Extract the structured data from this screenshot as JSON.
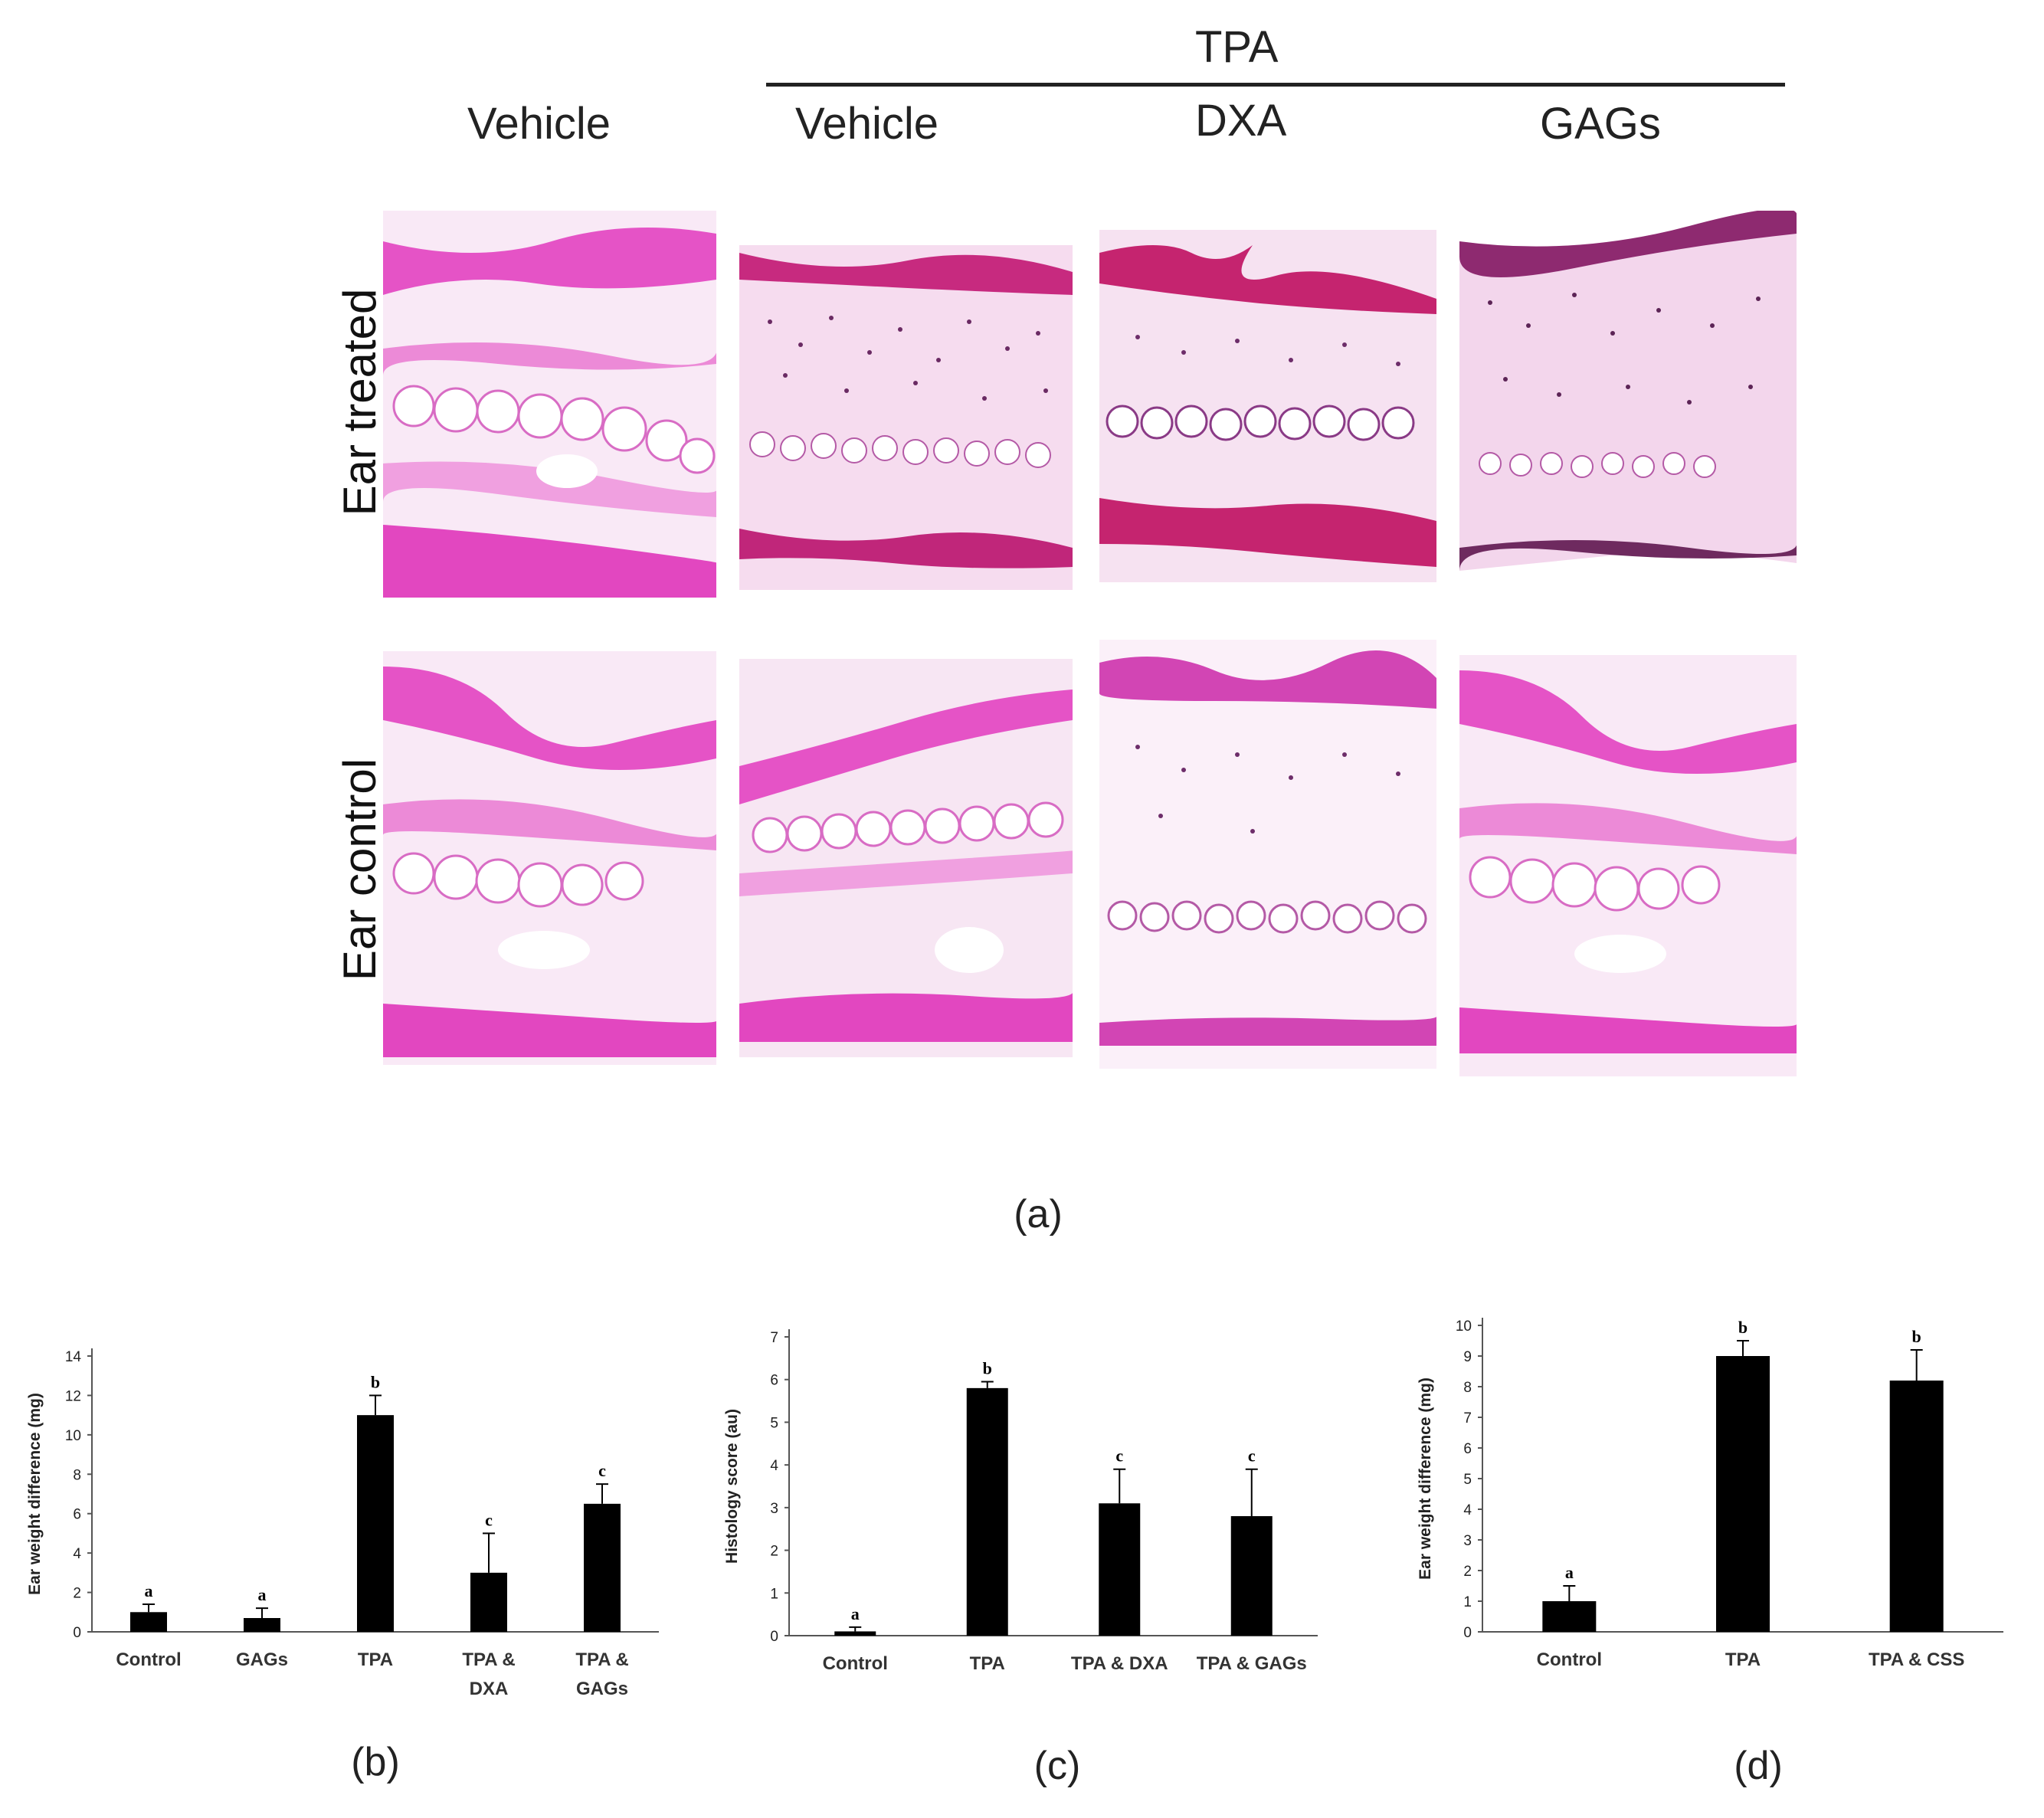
{
  "panel_a": {
    "header_tpa": "TPA",
    "col_headers": [
      "Vehicle",
      "Vehicle",
      "DXA",
      "GAGs"
    ],
    "row_labels": [
      "Ear treated",
      "Ear control"
    ],
    "label": "(a)"
  },
  "panel_labels": {
    "b": "(b)",
    "c": "(c)",
    "d": "(d)"
  },
  "chart_data": [
    {
      "type": "bar",
      "categories": [
        [
          "Control"
        ],
        [
          "GAGs"
        ],
        [
          "TPA"
        ],
        [
          "TPA &",
          "DXA"
        ],
        [
          "TPA &",
          "GAGs"
        ]
      ],
      "values": [
        1.0,
        0.7,
        11.0,
        3.0,
        6.5
      ],
      "errors": [
        0.4,
        0.5,
        1.0,
        2.0,
        1.0
      ],
      "letters": [
        "a",
        "a",
        "b",
        "c",
        "c"
      ],
      "ylabel": "Ear weight difference  (mg)",
      "ylim": [
        0,
        14
      ],
      "yticks": [
        0,
        2,
        4,
        6,
        8,
        10,
        12,
        14
      ],
      "color": "#000000"
    },
    {
      "type": "bar",
      "categories": [
        [
          "Control"
        ],
        [
          "TPA"
        ],
        [
          "TPA & DXA"
        ],
        [
          "TPA & GAGs"
        ]
      ],
      "values": [
        0.1,
        5.8,
        3.1,
        2.8
      ],
      "errors": [
        0.1,
        0.15,
        0.8,
        1.1
      ],
      "letters": [
        "a",
        "b",
        "c",
        "c"
      ],
      "ylabel": "Histology score (au)",
      "ylim": [
        0,
        7
      ],
      "yticks": [
        0,
        1,
        2,
        3,
        4,
        5,
        6,
        7
      ],
      "color": "#000000"
    },
    {
      "type": "bar",
      "categories": [
        [
          "Control"
        ],
        [
          "TPA"
        ],
        [
          "TPA & CSS"
        ]
      ],
      "values": [
        1.0,
        9.0,
        8.2
      ],
      "errors": [
        0.5,
        0.5,
        1.0
      ],
      "letters": [
        "a",
        "b",
        "b"
      ],
      "ylabel": "Ear weight difference (mg)",
      "ylim": [
        0,
        10
      ],
      "yticks": [
        0,
        1,
        2,
        3,
        4,
        5,
        6,
        7,
        8,
        9,
        10
      ],
      "color": "#000000"
    }
  ]
}
